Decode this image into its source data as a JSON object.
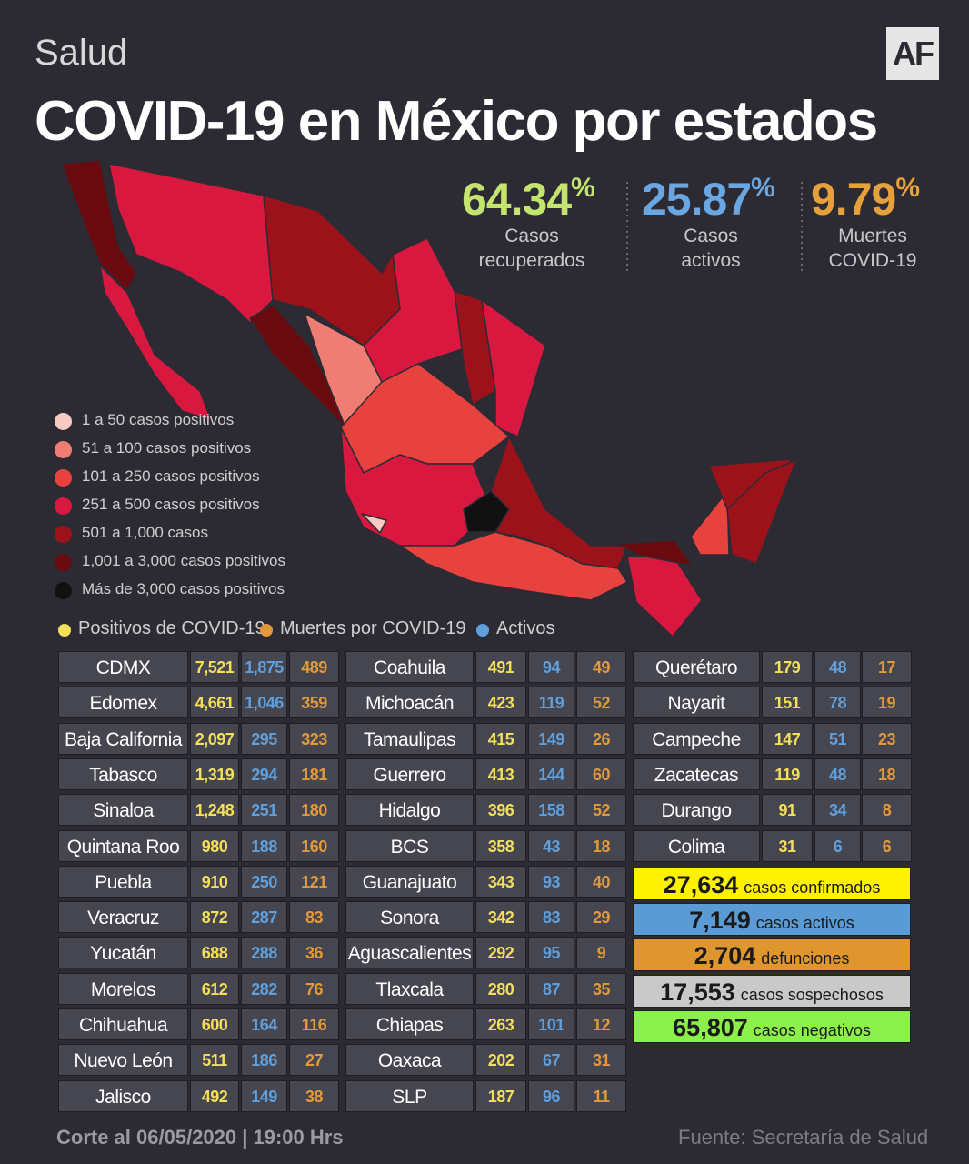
{
  "header": {
    "section": "Salud",
    "logo": "AF",
    "title": "COVID-19 en México por estados"
  },
  "stats": [
    {
      "value": "64.34",
      "unit": "%",
      "label": [
        "Casos",
        "recuperados"
      ],
      "color": "#c3e46e"
    },
    {
      "value": "25.87",
      "unit": "%",
      "label": [
        "Casos",
        "activos"
      ],
      "color": "#6aa7e2"
    },
    {
      "value": "9.79",
      "unit": "%",
      "label": [
        "Muertes",
        "COVID-19"
      ],
      "color": "#e6a13c"
    }
  ],
  "map_legend": [
    {
      "label": "1 a 50 casos positivos",
      "color": "#f9c9c4"
    },
    {
      "label": "51 a 100 casos positivos",
      "color": "#ef7d74"
    },
    {
      "label": "101 a 250 casos positivos",
      "color": "#e8423f"
    },
    {
      "label": "251 a 500 casos positivos",
      "color": "#d9183f"
    },
    {
      "label": "501 a 1,000 casos",
      "color": "#9c121a"
    },
    {
      "label": "1,001 a 3,000 casos positivos",
      "color": "#690a0f"
    },
    {
      "label": "Más de 3,000 casos positivos",
      "color": "#111111"
    }
  ],
  "table_legend": [
    {
      "label": "Positivos de COVID-19",
      "color": "#f3df5a"
    },
    {
      "label": "Muertes por COVID-19",
      "color": "#e2993c"
    },
    {
      "label": "Activos",
      "color": "#5f9fdc"
    }
  ],
  "tables": [
    {
      "rows": [
        [
          "CDMX",
          "7,521",
          "1,875",
          "489"
        ],
        [
          "Edomex",
          "4,661",
          "1,046",
          "359"
        ],
        [
          "Baja California",
          "2,097",
          "295",
          "323"
        ],
        [
          "Tabasco",
          "1,319",
          "294",
          "181"
        ],
        [
          "Sinaloa",
          "1,248",
          "251",
          "180"
        ],
        [
          "Quintana Roo",
          "980",
          "188",
          "160"
        ],
        [
          "Puebla",
          "910",
          "250",
          "121"
        ],
        [
          "Veracruz",
          "872",
          "287",
          "83"
        ],
        [
          "Yucatán",
          "688",
          "288",
          "36"
        ],
        [
          "Morelos",
          "612",
          "282",
          "76"
        ],
        [
          "Chihuahua",
          "600",
          "164",
          "116"
        ],
        [
          "Nuevo León",
          "511",
          "186",
          "27"
        ],
        [
          "Jalisco",
          "492",
          "149",
          "38"
        ]
      ]
    },
    {
      "rows": [
        [
          "Coahuila",
          "491",
          "94",
          "49"
        ],
        [
          "Michoacán",
          "423",
          "119",
          "52"
        ],
        [
          "Tamaulipas",
          "415",
          "149",
          "26"
        ],
        [
          "Guerrero",
          "413",
          "144",
          "60"
        ],
        [
          "Hidalgo",
          "396",
          "158",
          "52"
        ],
        [
          "BCS",
          "358",
          "43",
          "18"
        ],
        [
          "Guanajuato",
          "343",
          "93",
          "40"
        ],
        [
          "Sonora",
          "342",
          "83",
          "29"
        ],
        [
          "Aguascalientes",
          "292",
          "95",
          "9"
        ],
        [
          "Tlaxcala",
          "280",
          "87",
          "35"
        ],
        [
          "Chiapas",
          "263",
          "101",
          "12"
        ],
        [
          "Oaxaca",
          "202",
          "67",
          "31"
        ],
        [
          "SLP",
          "187",
          "96",
          "11"
        ]
      ]
    },
    {
      "rows": [
        [
          "Querétaro",
          "179",
          "48",
          "17"
        ],
        [
          "Nayarit",
          "151",
          "78",
          "19"
        ],
        [
          "Campeche",
          "147",
          "51",
          "23"
        ],
        [
          "Zacatecas",
          "119",
          "48",
          "18"
        ],
        [
          "Durango",
          "91",
          "34",
          "8"
        ],
        [
          "Colima",
          "31",
          "6",
          "6"
        ]
      ]
    }
  ],
  "summary": [
    {
      "value": "27,634",
      "label": "casos confirmados",
      "color": "#fff200"
    },
    {
      "value": "7,149",
      "label": "casos activos",
      "color": "#5b9bd5"
    },
    {
      "value": "2,704",
      "label": "defunciones",
      "color": "#e0962f"
    },
    {
      "value": "17,553",
      "label": "casos sospechosos",
      "color": "#c9c9c9"
    },
    {
      "value": "65,807",
      "label": "casos negativos",
      "color": "#8cf04a"
    }
  ],
  "footer": {
    "cut": "Corte al 06/05/2020 | 19:00 Hrs",
    "source": "Fuente: Secretaría de Salud"
  }
}
